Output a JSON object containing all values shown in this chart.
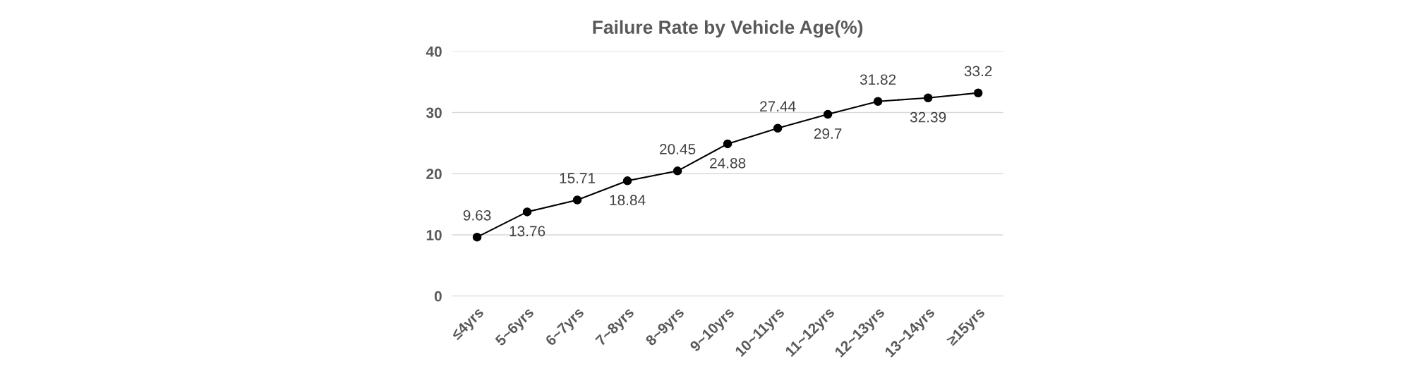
{
  "chart_data": {
    "type": "line",
    "title": "Failure Rate by Vehicle Age(%)",
    "categories": [
      "≤4yrs",
      "5~6yrs",
      "6~7yrs",
      "7~8yrs",
      "8~9yrs",
      "9~10yrs",
      "10~11yrs",
      "11~12yrs",
      "12~13yrs",
      "13~14yrs",
      "≥15yrs"
    ],
    "series": [
      {
        "color": "#000000",
        "values": [
          9.63,
          13.76,
          15.71,
          18.84,
          20.45,
          24.88,
          27.44,
          29.7,
          31.82,
          32.39,
          33.2
        ]
      }
    ],
    "ylim": [
      0,
      40
    ],
    "yticks": [
      0,
      10,
      20,
      30,
      40
    ],
    "grid": "y",
    "marker": "circle",
    "line_style": "solid",
    "data_labels": true
  }
}
